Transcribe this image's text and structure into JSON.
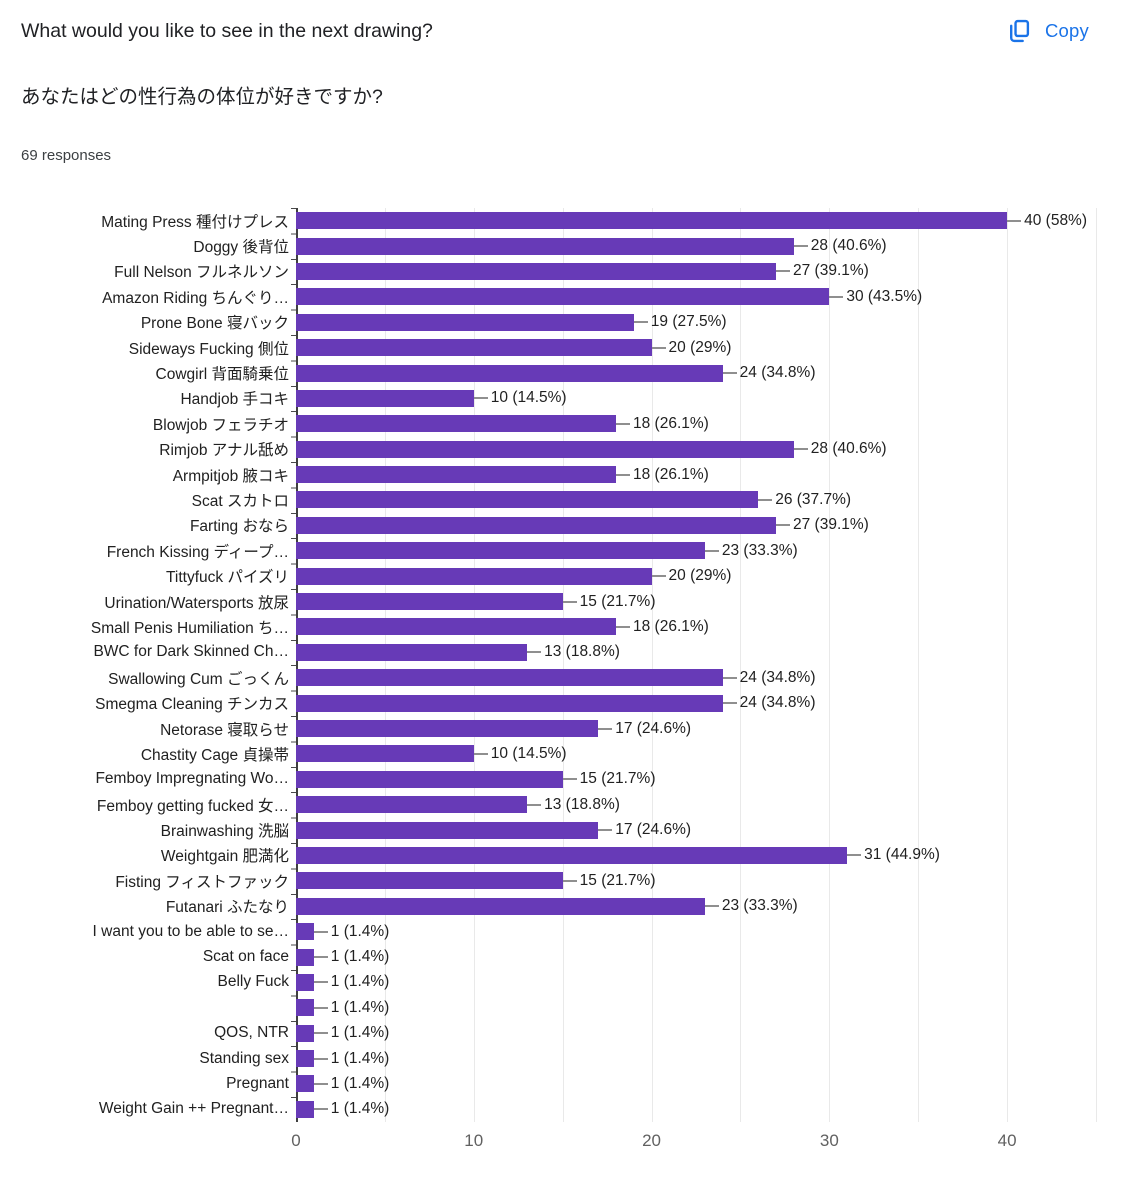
{
  "header": {
    "title": "What would you like to see in the next drawing?",
    "subtitle": "あなたはどの性行為の体位が好きですか?",
    "responses": "69 responses",
    "copy_label": "Copy"
  },
  "colors": {
    "bar": "#673ab7",
    "accent_blue": "#1a73e8",
    "callout": "#8f8f8f",
    "gridline": "#e9e9e9",
    "axis_line": "#3f3f3f",
    "text_dark": "#212121",
    "tick_text": "#616161"
  },
  "chart_data": {
    "type": "bar",
    "orientation": "horizontal",
    "title": "What would you like to see in the next drawing?",
    "subtitle": "あなたはどの性行為の体位が好きですか?",
    "responses_note": "69 responses",
    "xlim": [
      0,
      45
    ],
    "xticks": [
      0,
      10,
      20,
      30,
      40
    ],
    "grid": true,
    "gridline_step": 5,
    "legend": "none",
    "categories": [
      "Mating Press 種付けプレス",
      "Doggy 後背位",
      "Full Nelson フルネルソン",
      "Amazon Riding ちんぐり…",
      "Prone Bone 寝バック",
      "Sideways Fucking 側位",
      "Cowgirl 背面騎乗位",
      "Handjob 手コキ",
      "Blowjob フェラチオ",
      "Rimjob アナル舐め",
      "Armpitjob 腋コキ",
      "Scat スカトロ",
      "Farting おなら",
      "French Kissing ディープ…",
      "Tittyfuck パイズリ",
      "Urination/Watersports 放尿",
      "Small Penis Humiliation ち…",
      "BWC for Dark Skinned Ch…",
      "Swallowing Cum ごっくん",
      "Smegma Cleaning チンカス",
      "Netorase 寝取らせ",
      "Chastity Cage 貞操帯",
      "Femboy Impregnating Wo…",
      "Femboy getting fucked 女…",
      "Brainwashing 洗脳",
      "Weightgain 肥満化",
      "Fisting フィストファック",
      "Futanari ふたなり",
      "I want you to be able to se…",
      "Scat on face",
      "Belly Fuck",
      "",
      "QOS, NTR",
      "Standing sex",
      "Pregnant",
      "Weight Gain ++ Pregnant…"
    ],
    "values": [
      40,
      28,
      27,
      30,
      19,
      20,
      24,
      10,
      18,
      28,
      18,
      26,
      27,
      23,
      20,
      15,
      18,
      13,
      24,
      24,
      17,
      10,
      15,
      13,
      17,
      31,
      15,
      23,
      1,
      1,
      1,
      1,
      1,
      1,
      1,
      1
    ],
    "labels": [
      "40 (58%)",
      "28 (40.6%)",
      "27 (39.1%)",
      "30 (43.5%)",
      "19 (27.5%)",
      "20 (29%)",
      "24 (34.8%)",
      "10 (14.5%)",
      "18 (26.1%)",
      "28 (40.6%)",
      "18 (26.1%)",
      "26 (37.7%)",
      "27 (39.1%)",
      "23 (33.3%)",
      "20 (29%)",
      "15 (21.7%)",
      "18 (26.1%)",
      "13 (18.8%)",
      "24 (34.8%)",
      "24 (34.8%)",
      "17 (24.6%)",
      "10 (14.5%)",
      "15 (21.7%)",
      "13 (18.8%)",
      "17 (24.6%)",
      "31 (44.9%)",
      "15 (21.7%)",
      "23 (33.3%)",
      "1 (1.4%)",
      "1 (1.4%)",
      "1 (1.4%)",
      "1 (1.4%)",
      "1 (1.4%)",
      "1 (1.4%)",
      "1 (1.4%)",
      "1 (1.4%)"
    ]
  }
}
